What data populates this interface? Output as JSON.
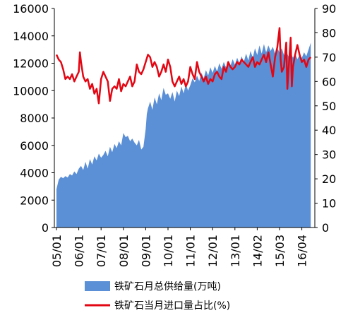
{
  "chart_data": {
    "type": "area+line",
    "categories": [
      "05/01",
      "06/01",
      "07/01",
      "08/01",
      "09/01",
      "10/01",
      "11/01",
      "12/01",
      "13/01",
      "14/02",
      "15/03",
      "16/04"
    ],
    "left_axis": {
      "min": 0,
      "max": 16000,
      "ticks": [
        "0",
        "2000",
        "4000",
        "6000",
        "8000",
        "10000",
        "12000",
        "14000",
        "16000"
      ]
    },
    "right_axis": {
      "min": 0,
      "max": 90,
      "ticks": [
        "0",
        "10",
        "20",
        "30",
        "40",
        "50",
        "60",
        "70",
        "80",
        "90"
      ]
    },
    "colors": {
      "area": "#5B8FD6",
      "line": "#E30613"
    },
    "legend_position": "bottom",
    "series": [
      {
        "name": "铁矿石月总供给量(万吨)",
        "type": "area",
        "axis": "left",
        "points": [
          [
            0,
            2800
          ],
          [
            0.1,
            3500
          ],
          [
            0.2,
            3700
          ],
          [
            0.3,
            3600
          ],
          [
            0.4,
            3750
          ],
          [
            0.5,
            3650
          ],
          [
            0.6,
            3900
          ],
          [
            0.7,
            3800
          ],
          [
            0.8,
            4100
          ],
          [
            0.9,
            3900
          ],
          [
            1.0,
            4300
          ],
          [
            1.1,
            4500
          ],
          [
            1.2,
            4200
          ],
          [
            1.3,
            4800
          ],
          [
            1.4,
            4300
          ],
          [
            1.5,
            5000
          ],
          [
            1.6,
            4600
          ],
          [
            1.7,
            5200
          ],
          [
            1.8,
            4900
          ],
          [
            1.9,
            5400
          ],
          [
            2.0,
            5100
          ],
          [
            2.1,
            5300
          ],
          [
            2.2,
            5600
          ],
          [
            2.3,
            5200
          ],
          [
            2.4,
            5900
          ],
          [
            2.5,
            5500
          ],
          [
            2.6,
            6100
          ],
          [
            2.7,
            5800
          ],
          [
            2.8,
            6300
          ],
          [
            2.9,
            6000
          ],
          [
            3.0,
            6900
          ],
          [
            3.1,
            6600
          ],
          [
            3.2,
            6700
          ],
          [
            3.3,
            6300
          ],
          [
            3.4,
            6500
          ],
          [
            3.5,
            6200
          ],
          [
            3.6,
            6000
          ],
          [
            3.7,
            6400
          ],
          [
            3.8,
            5700
          ],
          [
            3.9,
            5900
          ],
          [
            4.0,
            7200
          ],
          [
            4.05,
            8300
          ],
          [
            4.1,
            8700
          ],
          [
            4.2,
            9200
          ],
          [
            4.3,
            8600
          ],
          [
            4.4,
            9500
          ],
          [
            4.5,
            9000
          ],
          [
            4.6,
            9800
          ],
          [
            4.7,
            9300
          ],
          [
            4.8,
            10200
          ],
          [
            4.9,
            9700
          ],
          [
            5.0,
            9800
          ],
          [
            5.1,
            9400
          ],
          [
            5.2,
            9900
          ],
          [
            5.3,
            9200
          ],
          [
            5.4,
            10000
          ],
          [
            5.5,
            9600
          ],
          [
            5.6,
            10300
          ],
          [
            5.7,
            9800
          ],
          [
            5.8,
            10500
          ],
          [
            5.9,
            10000
          ],
          [
            6.0,
            10400
          ],
          [
            6.1,
            10900
          ],
          [
            6.2,
            10600
          ],
          [
            6.3,
            11100
          ],
          [
            6.4,
            10700
          ],
          [
            6.5,
            11300
          ],
          [
            6.6,
            10900
          ],
          [
            6.7,
            11500
          ],
          [
            6.8,
            11100
          ],
          [
            6.9,
            11700
          ],
          [
            7.0,
            11300
          ],
          [
            7.1,
            11800
          ],
          [
            7.2,
            11400
          ],
          [
            7.3,
            12000
          ],
          [
            7.4,
            11600
          ],
          [
            7.5,
            12100
          ],
          [
            7.6,
            11700
          ],
          [
            7.7,
            12200
          ],
          [
            7.8,
            11800
          ],
          [
            7.9,
            12300
          ],
          [
            8.0,
            11900
          ],
          [
            8.1,
            12400
          ],
          [
            8.2,
            12000
          ],
          [
            8.3,
            12500
          ],
          [
            8.4,
            12100
          ],
          [
            8.5,
            12700
          ],
          [
            8.6,
            12200
          ],
          [
            8.7,
            12900
          ],
          [
            8.8,
            12400
          ],
          [
            8.9,
            13100
          ],
          [
            9.0,
            12600
          ],
          [
            9.1,
            13300
          ],
          [
            9.2,
            12700
          ],
          [
            9.3,
            13400
          ],
          [
            9.4,
            12800
          ],
          [
            9.5,
            13300
          ],
          [
            9.6,
            12900
          ],
          [
            9.7,
            13200
          ],
          [
            9.8,
            12700
          ],
          [
            9.9,
            13100
          ],
          [
            10.0,
            12800
          ],
          [
            10.1,
            13100
          ],
          [
            10.2,
            12600
          ],
          [
            10.3,
            12900
          ],
          [
            10.4,
            12500
          ],
          [
            10.5,
            12800
          ],
          [
            10.6,
            12400
          ],
          [
            10.7,
            12700
          ],
          [
            10.8,
            12300
          ],
          [
            10.9,
            12600
          ],
          [
            11.0,
            12400
          ],
          [
            11.1,
            12800
          ],
          [
            11.2,
            12500
          ],
          [
            11.3,
            13000
          ],
          [
            11.4,
            13500
          ]
        ]
      },
      {
        "name": "铁矿石当月进口量占比(%)",
        "type": "line",
        "axis": "right",
        "points": [
          [
            0,
            71
          ],
          [
            0.1,
            69
          ],
          [
            0.2,
            68
          ],
          [
            0.3,
            65
          ],
          [
            0.4,
            61
          ],
          [
            0.5,
            62
          ],
          [
            0.6,
            61
          ],
          [
            0.7,
            63
          ],
          [
            0.8,
            60
          ],
          [
            0.9,
            62
          ],
          [
            1.0,
            64
          ],
          [
            1.05,
            72
          ],
          [
            1.1,
            68
          ],
          [
            1.2,
            62
          ],
          [
            1.3,
            60
          ],
          [
            1.4,
            61
          ],
          [
            1.5,
            57
          ],
          [
            1.6,
            59
          ],
          [
            1.7,
            55
          ],
          [
            1.8,
            57
          ],
          [
            1.9,
            51
          ],
          [
            2.0,
            61
          ],
          [
            2.1,
            64
          ],
          [
            2.2,
            62
          ],
          [
            2.3,
            60
          ],
          [
            2.4,
            52
          ],
          [
            2.5,
            57
          ],
          [
            2.6,
            58
          ],
          [
            2.7,
            57
          ],
          [
            2.8,
            61
          ],
          [
            2.9,
            56
          ],
          [
            3.0,
            59
          ],
          [
            3.1,
            58
          ],
          [
            3.2,
            60
          ],
          [
            3.3,
            62
          ],
          [
            3.4,
            58
          ],
          [
            3.5,
            60
          ],
          [
            3.6,
            67
          ],
          [
            3.7,
            64
          ],
          [
            3.8,
            63
          ],
          [
            3.9,
            65
          ],
          [
            4.0,
            68
          ],
          [
            4.1,
            71
          ],
          [
            4.2,
            70
          ],
          [
            4.3,
            66
          ],
          [
            4.4,
            68
          ],
          [
            4.5,
            66
          ],
          [
            4.6,
            62
          ],
          [
            4.7,
            64
          ],
          [
            4.8,
            67
          ],
          [
            4.9,
            64
          ],
          [
            5.0,
            69
          ],
          [
            5.1,
            66
          ],
          [
            5.2,
            60
          ],
          [
            5.3,
            58
          ],
          [
            5.4,
            60
          ],
          [
            5.5,
            62
          ],
          [
            5.6,
            59
          ],
          [
            5.7,
            61
          ],
          [
            5.8,
            58
          ],
          [
            5.9,
            60
          ],
          [
            6.0,
            66
          ],
          [
            6.1,
            63
          ],
          [
            6.2,
            61
          ],
          [
            6.3,
            68
          ],
          [
            6.4,
            64
          ],
          [
            6.5,
            62
          ],
          [
            6.6,
            60
          ],
          [
            6.7,
            62
          ],
          [
            6.8,
            59
          ],
          [
            6.9,
            61
          ],
          [
            7.0,
            60
          ],
          [
            7.1,
            63
          ],
          [
            7.2,
            64
          ],
          [
            7.3,
            62
          ],
          [
            7.4,
            61
          ],
          [
            7.5,
            66
          ],
          [
            7.6,
            64
          ],
          [
            7.7,
            68
          ],
          [
            7.8,
            66
          ],
          [
            7.9,
            65
          ],
          [
            8.0,
            66
          ],
          [
            8.1,
            68
          ],
          [
            8.2,
            67
          ],
          [
            8.3,
            69
          ],
          [
            8.4,
            68
          ],
          [
            8.5,
            67
          ],
          [
            8.6,
            66
          ],
          [
            8.7,
            68
          ],
          [
            8.8,
            70
          ],
          [
            8.9,
            66
          ],
          [
            9.0,
            68
          ],
          [
            9.1,
            67
          ],
          [
            9.2,
            69
          ],
          [
            9.3,
            71
          ],
          [
            9.4,
            68
          ],
          [
            9.5,
            72
          ],
          [
            9.6,
            67
          ],
          [
            9.7,
            62
          ],
          [
            9.8,
            70
          ],
          [
            9.9,
            74
          ],
          [
            10.0,
            82
          ],
          [
            10.05,
            69
          ],
          [
            10.1,
            64
          ],
          [
            10.2,
            66
          ],
          [
            10.3,
            76
          ],
          [
            10.35,
            57
          ],
          [
            10.4,
            64
          ],
          [
            10.5,
            78
          ],
          [
            10.55,
            58
          ],
          [
            10.6,
            66
          ],
          [
            10.7,
            71
          ],
          [
            10.8,
            75
          ],
          [
            10.9,
            71
          ],
          [
            11.0,
            68
          ],
          [
            11.1,
            69
          ],
          [
            11.2,
            66
          ],
          [
            11.3,
            69
          ],
          [
            11.4,
            70
          ]
        ]
      }
    ]
  }
}
